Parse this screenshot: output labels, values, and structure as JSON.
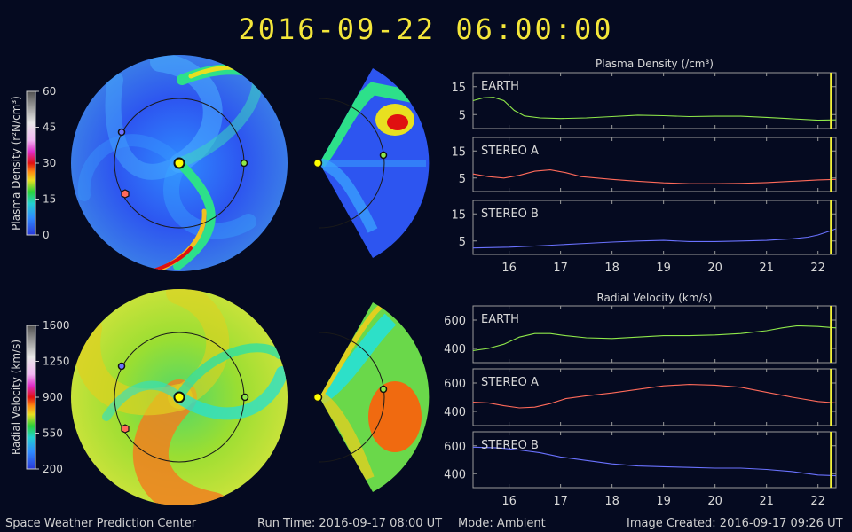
{
  "title": "2016-09-22  06:00:00",
  "footer": {
    "org": "Space Weather Prediction Center",
    "run_time": "Run Time: 2016-09-17 08:00 UT",
    "mode": "Mode: Ambient",
    "image_created": "Image Created: 2016-09-17 09:26 UT"
  },
  "colors": {
    "earth": "#8fe84a",
    "stereo_a": "#ff6a5a",
    "stereo_b": "#6a72ff",
    "marker_line": "#f4f23a",
    "sun": "#ffff00"
  },
  "colorbars": [
    {
      "label": "Plasma Density (r²N/cm³)",
      "ticks": [
        "60",
        "45",
        "30",
        "15",
        "0"
      ]
    },
    {
      "label": "Radial Velocity (km/s)",
      "ticks": [
        "1600",
        "1250",
        "900",
        "550",
        "200"
      ]
    }
  ],
  "chart_data": [
    {
      "type": "line",
      "title": "Plasma Density (/cm³)",
      "xlim": [
        15.3,
        22.35
      ],
      "xticks": [
        16,
        17,
        18,
        19,
        20,
        21,
        22
      ],
      "current_time": 22.25,
      "panels": [
        {
          "name": "EARTH",
          "color_key": "earth",
          "ylim": [
            0,
            20
          ],
          "yticks": [
            15,
            5
          ],
          "x": [
            15.3,
            15.5,
            15.7,
            15.9,
            16.1,
            16.3,
            16.6,
            17.0,
            17.5,
            18.0,
            18.5,
            19.0,
            19.5,
            20.0,
            20.5,
            21.0,
            21.5,
            22.0,
            22.35
          ],
          "y": [
            10,
            11,
            11.2,
            10,
            6.5,
            4.5,
            3.8,
            3.6,
            3.8,
            4.3,
            4.8,
            4.6,
            4.3,
            4.4,
            4.4,
            4.0,
            3.5,
            3.0,
            3.1
          ]
        },
        {
          "name": "STEREO A",
          "color_key": "stereo_a",
          "ylim": [
            0,
            20
          ],
          "yticks": [
            15,
            5
          ],
          "x": [
            15.3,
            15.6,
            15.9,
            16.2,
            16.5,
            16.8,
            17.1,
            17.4,
            18.0,
            18.5,
            19.0,
            19.5,
            20.0,
            20.5,
            21.0,
            21.5,
            22.0,
            22.35
          ],
          "y": [
            6.5,
            5.5,
            5.0,
            6.0,
            7.5,
            8.0,
            7.0,
            5.5,
            4.5,
            3.8,
            3.2,
            2.9,
            2.9,
            3.0,
            3.3,
            3.8,
            4.3,
            4.5
          ]
        },
        {
          "name": "STEREO B",
          "color_key": "stereo_b",
          "ylim": [
            0,
            20
          ],
          "yticks": [
            15,
            5
          ],
          "x": [
            15.3,
            16.0,
            16.5,
            17.0,
            17.5,
            18.0,
            18.5,
            19.0,
            19.5,
            20.0,
            20.5,
            21.0,
            21.5,
            21.8,
            22.0,
            22.2,
            22.35
          ],
          "y": [
            2.4,
            2.7,
            3.1,
            3.6,
            4.1,
            4.6,
            5.0,
            5.2,
            4.8,
            4.8,
            5.0,
            5.2,
            5.8,
            6.4,
            7.2,
            8.5,
            9.5
          ]
        }
      ]
    },
    {
      "type": "line",
      "title": "Radial Velocity (km/s)",
      "xlim": [
        15.3,
        22.35
      ],
      "xticks": [
        16,
        17,
        18,
        19,
        20,
        21,
        22
      ],
      "current_time": 22.25,
      "panels": [
        {
          "name": "EARTH",
          "color_key": "earth",
          "ylim": [
            300,
            700
          ],
          "yticks": [
            600,
            400
          ],
          "x": [
            15.3,
            15.6,
            15.9,
            16.2,
            16.5,
            16.8,
            17.1,
            17.5,
            18.0,
            18.5,
            19.0,
            19.5,
            20.0,
            20.5,
            21.0,
            21.3,
            21.6,
            22.0,
            22.35
          ],
          "y": [
            385,
            400,
            430,
            480,
            505,
            505,
            490,
            475,
            470,
            480,
            490,
            490,
            495,
            505,
            525,
            545,
            560,
            555,
            545
          ]
        },
        {
          "name": "STEREO A",
          "color_key": "stereo_a",
          "ylim": [
            300,
            700
          ],
          "yticks": [
            600,
            400
          ],
          "x": [
            15.3,
            15.6,
            15.9,
            16.2,
            16.5,
            16.8,
            17.1,
            17.5,
            18.0,
            18.5,
            19.0,
            19.5,
            20.0,
            20.5,
            21.0,
            21.5,
            22.0,
            22.35
          ],
          "y": [
            465,
            460,
            440,
            425,
            430,
            455,
            490,
            510,
            530,
            555,
            580,
            590,
            585,
            570,
            535,
            500,
            470,
            460
          ]
        },
        {
          "name": "STEREO B",
          "color_key": "stereo_b",
          "ylim": [
            300,
            700
          ],
          "yticks": [
            600,
            400
          ],
          "x": [
            15.3,
            15.8,
            16.2,
            16.6,
            17.0,
            17.5,
            18.0,
            18.5,
            19.0,
            19.5,
            20.0,
            20.5,
            21.0,
            21.5,
            22.0,
            22.35
          ],
          "y": [
            590,
            585,
            570,
            550,
            520,
            495,
            470,
            455,
            450,
            445,
            440,
            440,
            430,
            415,
            390,
            385
          ]
        }
      ]
    }
  ]
}
